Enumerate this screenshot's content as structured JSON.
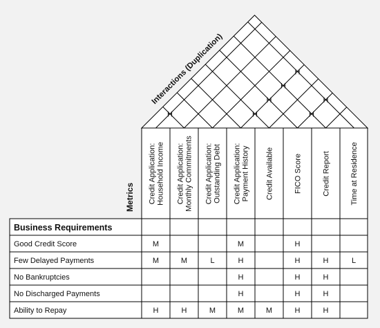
{
  "roof": {
    "title": "Interactions (Duplication)",
    "marks": [
      {
        "a": 0,
        "b": 1,
        "value": "H"
      },
      {
        "a": 3,
        "b": 4,
        "value": "H"
      },
      {
        "a": 3,
        "b": 5,
        "value": "H"
      },
      {
        "a": 3,
        "b": 6,
        "value": "H"
      },
      {
        "a": 3,
        "b": 7,
        "value": "H"
      },
      {
        "a": 5,
        "b": 6,
        "value": "H"
      },
      {
        "a": 5,
        "b": 7,
        "value": "H"
      }
    ]
  },
  "metrics_label": "Metrics",
  "requirements_header": "Business Requirements",
  "metrics": [
    "Credit Application: Household Income",
    "Credit Application: Monthly Commitments",
    "Credit Application: Outstanding Debt",
    "Credit Application: Payment History",
    "Credit Available",
    "FICO Score",
    "Credit Report",
    "Time at Residence"
  ],
  "rows": [
    {
      "label": "Good Credit Score",
      "cells": [
        "M",
        "",
        "",
        "M",
        "",
        "H",
        "",
        ""
      ]
    },
    {
      "label": "Few Delayed Payments",
      "cells": [
        "M",
        "M",
        "L",
        "H",
        "",
        "H",
        "H",
        "L"
      ]
    },
    {
      "label": "No Bankruptcies",
      "cells": [
        "",
        "",
        "",
        "H",
        "",
        "H",
        "H",
        ""
      ]
    },
    {
      "label": "No Discharged Payments",
      "cells": [
        "",
        "",
        "",
        "H",
        "",
        "H",
        "H",
        ""
      ]
    },
    {
      "label": "Ability to Repay",
      "cells": [
        "H",
        "H",
        "M",
        "M",
        "M",
        "H",
        "H",
        ""
      ]
    }
  ]
}
